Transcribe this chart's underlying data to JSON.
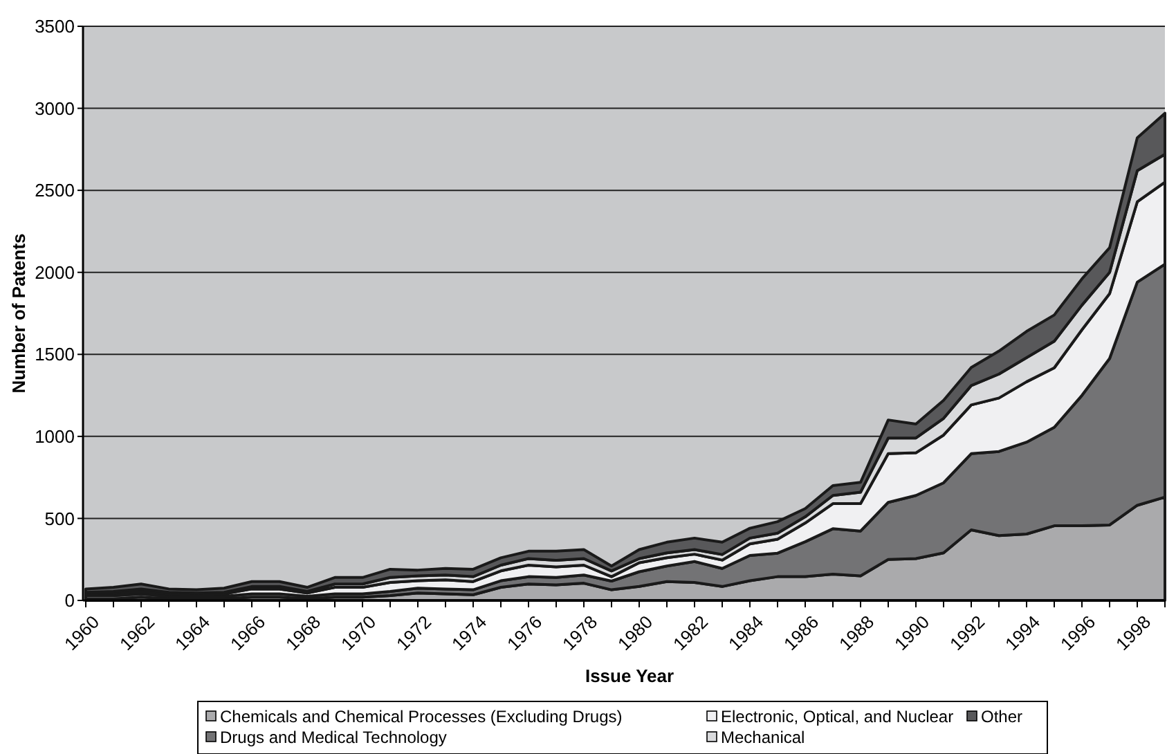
{
  "chart_data": {
    "type": "area",
    "stacked": true,
    "xlabel": "Issue Year",
    "ylabel": "Number of Patents",
    "categories": [
      "1960",
      null,
      "1962",
      null,
      "1964",
      null,
      "1966",
      null,
      "1968",
      null,
      "1970",
      null,
      "1972",
      null,
      "1974",
      null,
      "1976",
      null,
      "1978",
      null,
      "1980",
      null,
      "1982",
      null,
      "1984",
      null,
      "1986",
      null,
      "1988",
      null,
      "1990",
      null,
      "1992",
      null,
      "1994",
      null,
      "1996",
      null,
      "1998",
      null
    ],
    "ylim": [
      0,
      3500
    ],
    "yticks": [
      0,
      500,
      1000,
      1500,
      2000,
      2500,
      3000,
      3500
    ],
    "grid": "y",
    "legend": "bottom",
    "series": [
      {
        "name": "Chemicals and Chemical Processes (Excluding Drugs)",
        "color": "#aaaaac",
        "values": [
          10,
          10,
          20,
          10,
          5,
          10,
          20,
          20,
          10,
          20,
          20,
          30,
          45,
          40,
          35,
          80,
          100,
          95,
          105,
          65,
          85,
          115,
          110,
          85,
          120,
          145,
          145,
          160,
          150,
          250,
          255,
          290,
          430,
          395,
          405,
          455,
          455,
          460,
          580,
          630
        ]
      },
      {
        "name": "Drugs and Medical Technology",
        "color": "#737375",
        "values": [
          20,
          20,
          20,
          15,
          15,
          15,
          20,
          20,
          15,
          20,
          20,
          25,
          30,
          30,
          30,
          40,
          45,
          45,
          50,
          53,
          90,
          95,
          127,
          110,
          154,
          143,
          213,
          277,
          273,
          348,
          385,
          427,
          465,
          513,
          560,
          600,
          795,
          1015,
          1360,
          1420
        ]
      },
      {
        "name": "Electronic, Optical, and Nuclear",
        "color": "#f0f0f2",
        "values": [
          10,
          15,
          15,
          15,
          15,
          15,
          30,
          30,
          20,
          40,
          40,
          55,
          45,
          55,
          50,
          60,
          70,
          65,
          60,
          27,
          55,
          50,
          45,
          51,
          71,
          85,
          114,
          153,
          167,
          297,
          260,
          291,
          297,
          326,
          368,
          363,
          400,
          395,
          490,
          500
        ]
      },
      {
        "name": "Mechanical",
        "color": "#d9dadc",
        "values": [
          10,
          10,
          15,
          10,
          10,
          10,
          15,
          15,
          10,
          20,
          20,
          30,
          30,
          30,
          30,
          35,
          40,
          40,
          40,
          35,
          25,
          30,
          28,
          34,
          35,
          37,
          38,
          50,
          70,
          95,
          90,
          102,
          118,
          146,
          147,
          162,
          150,
          130,
          190,
          170
        ]
      },
      {
        "name": "Other",
        "color": "#58585a",
        "values": [
          20,
          25,
          30,
          20,
          20,
          25,
          30,
          30,
          25,
          40,
          40,
          50,
          35,
          40,
          45,
          45,
          45,
          55,
          55,
          30,
          55,
          65,
          70,
          75,
          60,
          70,
          50,
          60,
          60,
          110,
          85,
          110,
          110,
          140,
          160,
          160,
          160,
          150,
          200,
          250
        ]
      }
    ]
  }
}
